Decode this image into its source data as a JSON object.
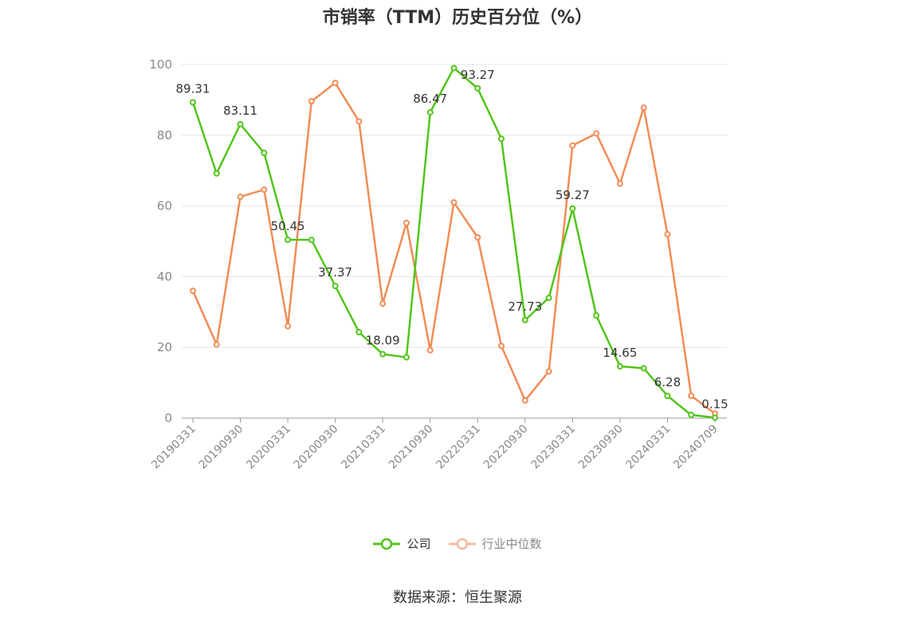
{
  "title": "市销率（TTM）历史百分位（%）",
  "source": "数据来源：恒生聚源",
  "chart_data": {
    "type": "line",
    "title": "市销率（TTM）历史百分位（%）",
    "ylim": [
      0,
      100
    ],
    "yticks": [
      0,
      20,
      40,
      60,
      80,
      100
    ],
    "grid": true,
    "legend_position": "bottom",
    "x": [
      "20190331",
      "20190630",
      "20190930",
      "20191231",
      "20200331",
      "20200630",
      "20200930",
      "20201231",
      "20210331",
      "20210630",
      "20210930",
      "20211231",
      "20220331",
      "20220630",
      "20220930",
      "20221231",
      "20230331",
      "20230630",
      "20230930",
      "20231231",
      "20240331",
      "20240630",
      "20240709"
    ],
    "xtick_labels": [
      "20190331",
      "20190930",
      "20200331",
      "20200930",
      "20210331",
      "20210930",
      "20220331",
      "20220930",
      "20230331",
      "20230930",
      "20240331",
      "20240709"
    ],
    "series": [
      {
        "name": "公司",
        "color": "#52c41a",
        "values": [
          89.31,
          69.2,
          83.11,
          75.0,
          50.45,
          50.4,
          37.37,
          24.3,
          18.09,
          17.2,
          86.47,
          99.0,
          93.27,
          79.0,
          27.73,
          34.0,
          59.27,
          29.0,
          14.65,
          14.1,
          6.28,
          0.9,
          0.15
        ],
        "labels": {
          "0": "89.31",
          "2": "83.11",
          "4": "50.45",
          "6": "37.37",
          "8": "18.09",
          "10": "86.47",
          "12": "93.27",
          "14": "27.73",
          "16": "59.27",
          "18": "14.65",
          "20": "6.28",
          "22": "0.15"
        }
      },
      {
        "name": "行业中位数",
        "color": "#f28c57",
        "values": [
          36.0,
          20.8,
          62.6,
          64.6,
          26.0,
          89.6,
          94.8,
          83.9,
          32.4,
          55.2,
          19.2,
          61.0,
          51.1,
          20.4,
          5.0,
          13.2,
          77.1,
          80.5,
          66.3,
          87.8,
          52.0,
          6.3,
          1.3
        ]
      }
    ]
  }
}
